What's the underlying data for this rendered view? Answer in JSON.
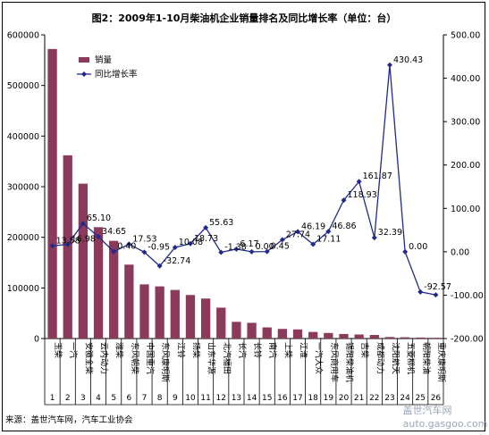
{
  "chart_data": {
    "type": "bar",
    "title": "图2：2009年1-10月柴油机企业销量排名及同比增长率（单位：台）",
    "categories": [
      "玉柴",
      "一汽",
      "安徽全柴",
      "云内动力",
      "潍柴",
      "东风朝柴",
      "中国重汽",
      "东风康明斯",
      "江铃",
      "扬柴",
      "山东华源",
      "北汽福田",
      "长汽",
      "长铃",
      "南汽",
      "上柴",
      "江淮",
      "一汽大众",
      "东风商用车",
      "锡阳柴油机",
      "吉柴",
      "成都动力",
      "沈阳航天",
      "五菱柳机",
      "朝阳柴油",
      "重庆康明斯"
    ],
    "ranks": [
      "1",
      "2",
      "3",
      "4",
      "5",
      "6",
      "7",
      "8",
      "9",
      "10",
      "11",
      "12",
      "13",
      "14",
      "15",
      "16",
      "17",
      "18",
      "19",
      "20",
      "21",
      "22",
      "23",
      "24",
      "25",
      "26"
    ],
    "series": [
      {
        "name": "销量",
        "axis": "left",
        "color": "#8b3a5b",
        "values": [
          572000,
          362000,
          306000,
          220000,
          193000,
          146000,
          107000,
          103000,
          96000,
          86000,
          79000,
          61000,
          33000,
          31000,
          22000,
          19000,
          18000,
          13000,
          11000,
          9000,
          8000,
          7000,
          3000,
          2500,
          2000,
          1500
        ]
      },
      {
        "name": "同比增长率",
        "axis": "right",
        "color": "#1f2a8c",
        "values": [
          13.58,
          16.98,
          65.1,
          34.65,
          0.4,
          17.53,
          -0.95,
          -32.74,
          10.08,
          18.73,
          55.63,
          -1.38,
          6.17,
          0.0,
          0.45,
          27.74,
          46.19,
          17.11,
          46.86,
          118.93,
          161.87,
          32.39,
          430.43,
          0.0,
          -92.57,
          -99.3
        ],
        "labels": [
          "13.58",
          "16.98",
          "65.10",
          "34.65",
          "0.40",
          "17.53",
          "-0.95",
          "-32.74",
          "10.08",
          "18.73",
          "55.63",
          "-1.38",
          "6.17",
          "0.00",
          "0.45",
          "27.74",
          "46.19",
          "17.11",
          "46.86",
          "118.93",
          "161.87",
          "32.39",
          "430.43",
          "0.00",
          "-92.57",
          ""
        ]
      }
    ],
    "y_left": {
      "min": 0,
      "max": 600000,
      "ticks": [
        "0",
        "100000",
        "200000",
        "300000",
        "400000",
        "500000",
        "600000"
      ]
    },
    "y_right": {
      "min": -200,
      "max": 500,
      "ticks": [
        "-200.00",
        "-100.00",
        "0.00",
        "100.00",
        "200.00",
        "300.00",
        "400.00",
        "500.00"
      ]
    },
    "legend": {
      "position": "top-left"
    },
    "grid": false
  },
  "source": "来源：盖世汽车网，汽车工业协会",
  "watermark": {
    "text": "盖世汽车网",
    "url": "auto.gasgoo.com"
  }
}
